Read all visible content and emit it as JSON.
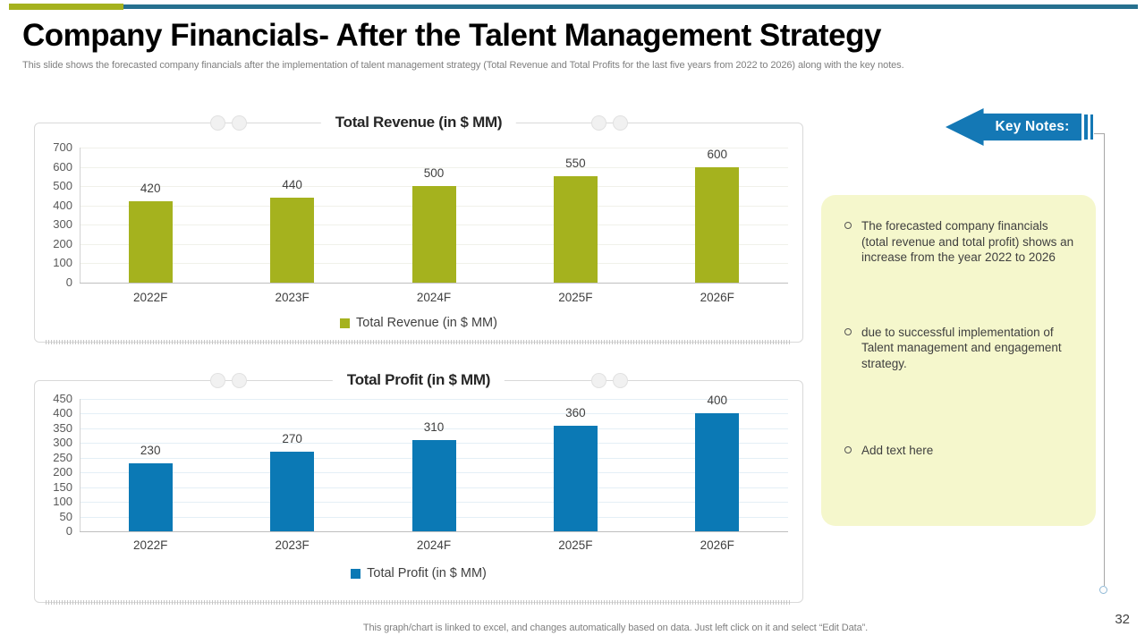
{
  "slide": {
    "title": "Company Financials- After the Talent Management Strategy",
    "subtitle": "This slide shows the forecasted company financials after the implementation of talent management strategy (Total Revenue and Total Profits for the last five years from 2022 to 2026) along with the key notes.",
    "footer": "This graph/chart is linked to excel, and changes automatically based on data. Just left click on it and select “Edit Data”.",
    "page_number": "32"
  },
  "key_notes": {
    "label": "Key Notes:",
    "bullets": [
      "The forecasted company financials (total revenue and total profit) shows an increase from the year 2022 to 2026",
      "due to successful implementation of Talent management and engagement strategy.",
      "Add text here"
    ]
  },
  "chart_data": [
    {
      "type": "bar",
      "title": "Total Revenue (in $ MM)",
      "legend": "Total Revenue (in $ MM)",
      "categories": [
        "2022F",
        "2023F",
        "2024F",
        "2025F",
        "2026F"
      ],
      "values": [
        420,
        440,
        500,
        550,
        600
      ],
      "ylim": [
        0,
        700
      ],
      "ytick_step": 100,
      "bar_color": "#a5b21e",
      "grid": true,
      "legend_position": "bottom"
    },
    {
      "type": "bar",
      "title": "Total Profit (in $ MM)",
      "legend": "Total Profit (in $ MM)",
      "categories": [
        "2022F",
        "2023F",
        "2024F",
        "2025F",
        "2026F"
      ],
      "values": [
        230,
        270,
        310,
        360,
        400
      ],
      "ylim": [
        0,
        450
      ],
      "ytick_step": 50,
      "bar_color": "#0b79b5",
      "grid": true,
      "legend_position": "bottom"
    }
  ],
  "colors": {
    "accent_green": "#a5b21e",
    "header_line_blue": "#26708f",
    "bar_green": "#a5b21e",
    "bar_blue": "#0b79b5",
    "arrow_blue": "#1478b5",
    "notes_bg": "#f5f7cc"
  }
}
